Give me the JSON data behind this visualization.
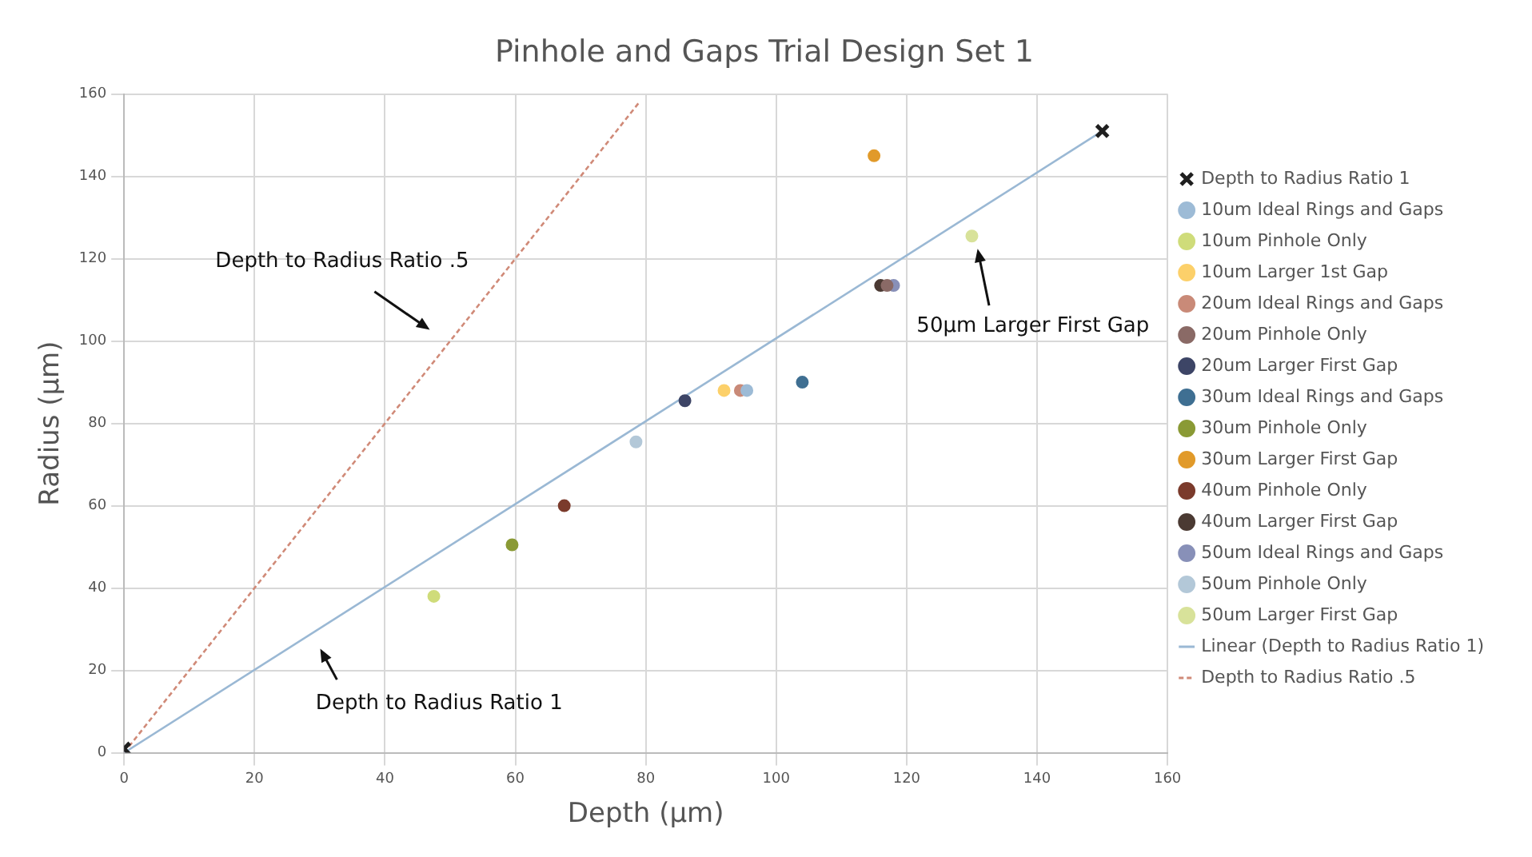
{
  "chart_data": {
    "type": "scatter",
    "title": "Pinhole and Gaps Trial Design Set 1",
    "xlabel": "Depth (µm)",
    "ylabel": "Radius (µm)",
    "xlim": [
      0,
      160
    ],
    "xticks": [
      0,
      20,
      40,
      60,
      80,
      100,
      120,
      140,
      160
    ],
    "ylim": [
      0,
      160
    ],
    "yticks": [
      0,
      20,
      40,
      60,
      80,
      100,
      120,
      140,
      160
    ],
    "grid": true,
    "legend": "right",
    "marker": "circle",
    "series": [
      {
        "name": "Depth to Radius Ratio 1",
        "color": "#1f1f1f",
        "marker": "cross",
        "x": [
          0,
          150
        ],
        "values": [
          1,
          151
        ]
      },
      {
        "name": "10um Ideal Rings and Gaps",
        "color": "#9dbbd6",
        "x": [
          95.5
        ],
        "values": [
          88
        ]
      },
      {
        "name": "10um Pinhole Only",
        "color": "#cfdc7a",
        "x": [
          47.5
        ],
        "values": [
          38
        ]
      },
      {
        "name": "10um Larger 1st Gap",
        "color": "#fcd06a",
        "x": [
          92
        ],
        "values": [
          88
        ]
      },
      {
        "name": "20um Ideal Rings and Gaps",
        "color": "#c98a78",
        "x": [
          94.5
        ],
        "values": [
          88
        ]
      },
      {
        "name": "20um Pinhole Only",
        "color": "#8a6a66",
        "x": [
          117
        ],
        "values": [
          113.5
        ]
      },
      {
        "name": "20um Larger First Gap",
        "color": "#3d4566",
        "x": [
          86
        ],
        "values": [
          85.5
        ]
      },
      {
        "name": "30um Ideal Rings and Gaps",
        "color": "#3f6f92",
        "x": [
          104
        ],
        "values": [
          90
        ]
      },
      {
        "name": "30um Pinhole Only",
        "color": "#8a9a35",
        "x": [
          59.5
        ],
        "values": [
          50.5
        ]
      },
      {
        "name": "30um Larger First Gap",
        "color": "#e19a2a",
        "x": [
          115
        ],
        "values": [
          145
        ]
      },
      {
        "name": "40um Pinhole Only",
        "color": "#7b3b2c",
        "x": [
          67.5
        ],
        "values": [
          60
        ]
      },
      {
        "name": "40um Larger First Gap",
        "color": "#4b3a33",
        "x": [
          116
        ],
        "values": [
          113.5
        ]
      },
      {
        "name": "50um Ideal Rings and Gaps",
        "color": "#8890b8",
        "x": [
          118
        ],
        "values": [
          113.5
        ]
      },
      {
        "name": "50um Pinhole Only",
        "color": "#b3c8d8",
        "x": [
          78.5
        ],
        "values": [
          75.5
        ]
      },
      {
        "name": "50um Larger First Gap",
        "color": "#d8e29a",
        "x": [
          130
        ],
        "values": [
          125.5
        ]
      },
      {
        "name": "Linear (Depth to Radius Ratio 1)",
        "type": "line",
        "color": "#9ab8d4",
        "line_style": "solid",
        "marker": "none",
        "x": [
          0,
          150
        ],
        "values": [
          0,
          151
        ]
      },
      {
        "name": "Depth to Radius Ratio .5",
        "type": "line",
        "color": "#d08a78",
        "line_style": "dashed",
        "marker": "none",
        "x": [
          0,
          79
        ],
        "values": [
          0,
          158
        ]
      }
    ],
    "annotations": [
      "Depth to Radius Ratio .5",
      "Depth to Radius Ratio 1",
      "50µm Larger First Gap"
    ]
  }
}
